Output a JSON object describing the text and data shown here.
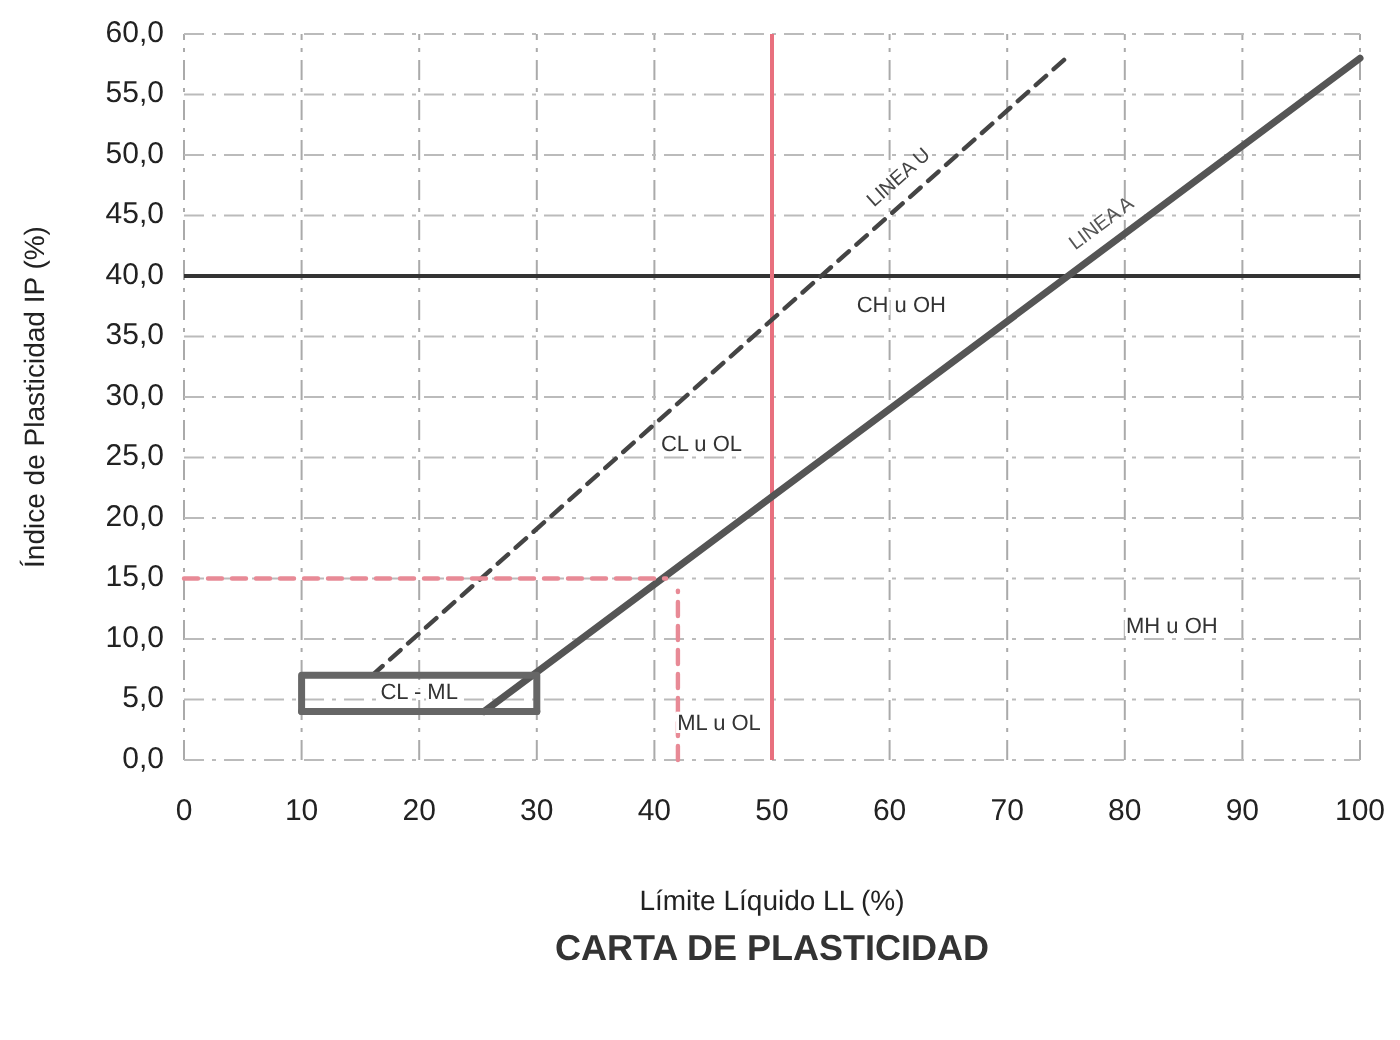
{
  "chart_data": {
    "type": "line",
    "title": "CARTA DE PLASTICIDAD",
    "xlabel": "Límite Líquido LL (%)",
    "ylabel": "Índice de Plasticidad IP (%)",
    "xlim": [
      0,
      100
    ],
    "xticks": [
      0,
      10,
      20,
      30,
      40,
      50,
      60,
      70,
      80,
      90,
      100
    ],
    "ylim": [
      0,
      60
    ],
    "yticks": [
      {
        "value": 0,
        "label": "0,0"
      },
      {
        "value": 5,
        "label": "5,0"
      },
      {
        "value": 10,
        "label": "10,0"
      },
      {
        "value": 15,
        "label": "15,0"
      },
      {
        "value": 20,
        "label": "20,0"
      },
      {
        "value": 25,
        "label": "25,0"
      },
      {
        "value": 30,
        "label": "30,0"
      },
      {
        "value": 35,
        "label": "35,0"
      },
      {
        "value": 40,
        "label": "40,0"
      },
      {
        "value": 45,
        "label": "45,0"
      },
      {
        "value": 50,
        "label": "50,0"
      },
      {
        "value": 55,
        "label": "55,0"
      },
      {
        "value": 60,
        "label": "60,0"
      }
    ],
    "grid": true,
    "marker": "none",
    "series": [
      {
        "name": "LINEA A",
        "color": "#555555",
        "x": [
          25.5,
          100
        ],
        "values": [
          4,
          58
        ]
      },
      {
        "name": "LINEA U",
        "color": "#444444",
        "x": [
          16,
          75
        ],
        "values": [
          7,
          58
        ],
        "line_style": "dashed"
      },
      {
        "color": "#666666",
        "x": [
          10,
          10,
          30,
          30
        ],
        "values": [
          4,
          7,
          7,
          4
        ]
      },
      {
        "color": "#666666",
        "x": [
          10,
          30
        ],
        "values": [
          4,
          4
        ]
      },
      {
        "color": "#e88a96",
        "x": [
          0,
          41
        ],
        "values": [
          15,
          15
        ],
        "line_style": "dashed"
      },
      {
        "color": "#e88a96",
        "x": [
          42,
          42
        ],
        "values": [
          0,
          14
        ],
        "line_style": "dashed"
      }
    ],
    "ref_lines": [
      {
        "axis": "y",
        "value": 40,
        "color": "#333333"
      },
      {
        "axis": "x",
        "value": 50,
        "color": "#e8707e"
      }
    ],
    "annotations": [
      "CH u OH",
      "CL u OL",
      "CL - ML",
      "ML u OL",
      "MH u OH"
    ]
  }
}
